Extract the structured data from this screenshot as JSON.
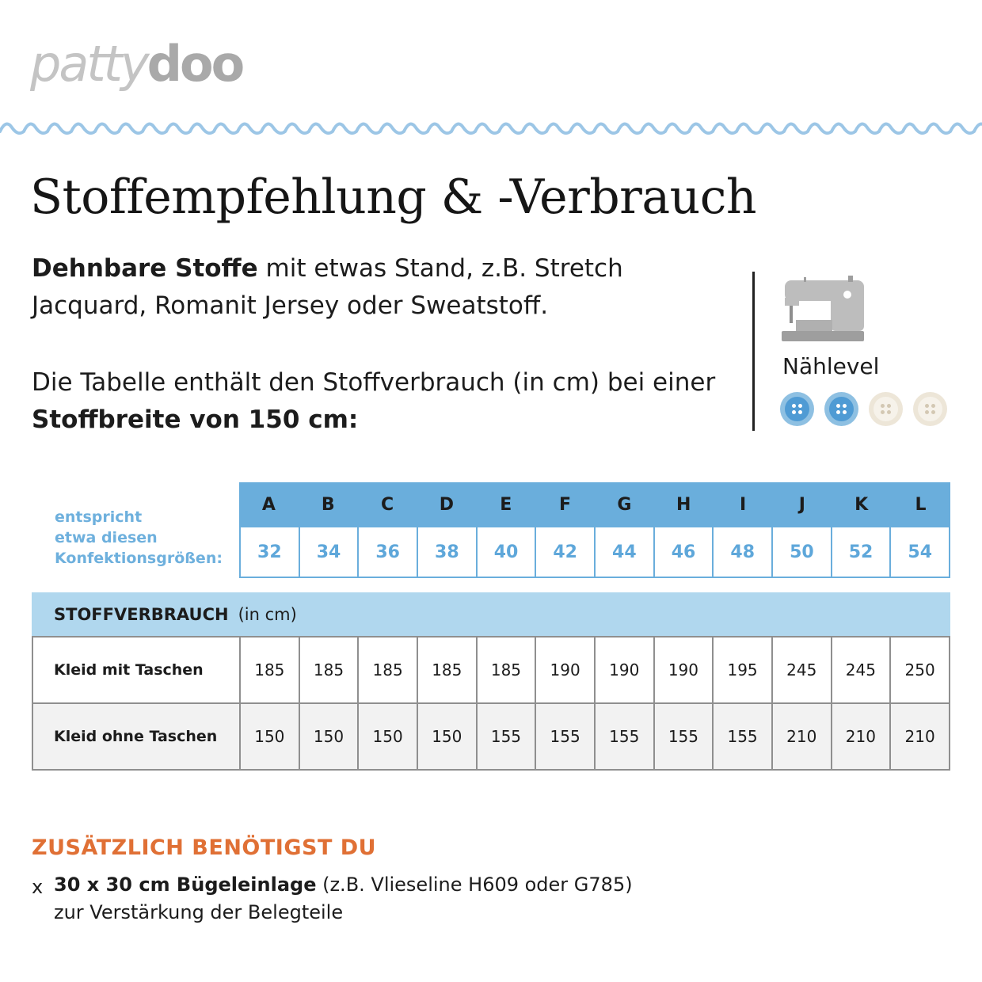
{
  "logo": {
    "part1": "patty",
    "part2": "doo"
  },
  "title": "Stoffempfehlung & -Verbrauch",
  "intro": {
    "p1_bold": "Dehnbare Stoffe",
    "p1_rest": " mit etwas Stand, z.B. Stretch Jacquard, Romanit Jersey oder Sweatstoff.",
    "p2_a": "Die Tabelle enthält den Stoffverbrauch (in cm) bei einer ",
    "p2_bold": "Stoffbreite von 150 cm:"
  },
  "sewing_level": {
    "label": "Nählevel",
    "value": 2,
    "max": 4
  },
  "sizes": {
    "note_lines": [
      "entspricht",
      "etwa diesen",
      "Konfektionsgrößen:"
    ],
    "letters": [
      "A",
      "B",
      "C",
      "D",
      "E",
      "F",
      "G",
      "H",
      "I",
      "J",
      "K",
      "L"
    ],
    "numbers": [
      "32",
      "34",
      "36",
      "38",
      "40",
      "42",
      "44",
      "46",
      "48",
      "50",
      "52",
      "54"
    ]
  },
  "usage": {
    "header_bold": "STOFFVERBRAUCH",
    "header_unit": "(in cm)",
    "rows": [
      {
        "label": "Kleid mit Taschen",
        "values": [
          "185",
          "185",
          "185",
          "185",
          "185",
          "190",
          "190",
          "190",
          "195",
          "245",
          "245",
          "250"
        ]
      },
      {
        "label": "Kleid ohne Taschen",
        "values": [
          "150",
          "150",
          "150",
          "150",
          "155",
          "155",
          "155",
          "155",
          "155",
          "210",
          "210",
          "210"
        ]
      }
    ]
  },
  "extra": {
    "title": "ZUSÄTZLICH BENÖTIGST DU",
    "mark": "x",
    "item_bold": "30 x 30 cm Bügeleinlage",
    "item_rest": " (z.B. Vlieseline H609 oder G785)",
    "item_line2": "zur Verstärkung der Belegteile"
  },
  "colors": {
    "accent_blue": "#6aaedc",
    "light_blue": "#b0d7ee",
    "orange": "#e07035"
  }
}
